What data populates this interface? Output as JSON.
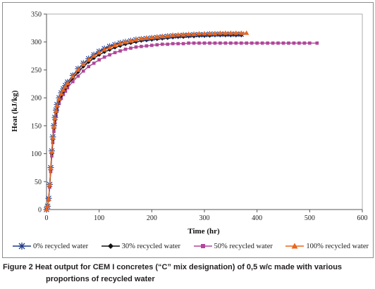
{
  "caption": {
    "label": "Figure 2",
    "text_line1": " Heat output for CEM I concretes (“C” mix designation) of 0,5 w/c made with various",
    "text_line2": "proportions of recycled water"
  },
  "chart_data": {
    "type": "line",
    "title": "",
    "xlabel": "Time (hr)",
    "ylabel": "Heat (kJ/kg)",
    "xlim": [
      0,
      600
    ],
    "ylim": [
      0,
      350
    ],
    "xticks": [
      0,
      100,
      200,
      300,
      400,
      500,
      600
    ],
    "yticks": [
      0,
      50,
      100,
      150,
      200,
      250,
      300,
      350
    ],
    "grid": false,
    "legend_position": "bottom",
    "series": [
      {
        "name": "0% recycled water",
        "color": "#1f3c8a",
        "marker": "asterisk-icon",
        "x": [
          0,
          2,
          4,
          6,
          8,
          10,
          12,
          14,
          16,
          18,
          20,
          24,
          28,
          32,
          36,
          40,
          50,
          60,
          70,
          80,
          90,
          100,
          110,
          120,
          130,
          140,
          150,
          160,
          170,
          180,
          190,
          200,
          210,
          220,
          230,
          240,
          250,
          260,
          270,
          280,
          290,
          300,
          310,
          320,
          330,
          340,
          350,
          360,
          370
        ],
        "y": [
          0,
          6,
          20,
          45,
          75,
          105,
          130,
          150,
          165,
          178,
          188,
          200,
          209,
          216,
          222,
          228,
          240,
          252,
          262,
          270,
          277,
          283,
          288,
          292,
          295,
          298,
          300,
          302,
          304,
          305,
          306,
          307,
          308,
          309,
          310,
          311,
          311,
          312,
          312,
          313,
          313,
          313,
          314,
          314,
          314,
          314,
          314,
          314,
          314
        ]
      },
      {
        "name": "30% recycled water",
        "color": "#111111",
        "marker": "diamond-icon",
        "x": [
          0,
          2,
          4,
          6,
          8,
          10,
          12,
          14,
          16,
          18,
          20,
          24,
          28,
          32,
          36,
          40,
          50,
          60,
          70,
          80,
          90,
          100,
          110,
          120,
          130,
          140,
          150,
          160,
          170,
          180,
          190,
          200,
          210,
          220,
          230,
          240,
          250,
          260,
          270,
          280,
          290,
          300,
          310,
          320,
          330,
          340,
          350,
          360,
          370
        ],
        "y": [
          0,
          5,
          18,
          42,
          72,
          100,
          125,
          145,
          160,
          173,
          183,
          195,
          204,
          211,
          217,
          223,
          235,
          246,
          256,
          264,
          271,
          277,
          282,
          286,
          290,
          293,
          296,
          298,
          300,
          302,
          303,
          304,
          305,
          306,
          307,
          308,
          309,
          309,
          310,
          310,
          311,
          311,
          311,
          312,
          312,
          312,
          312,
          312,
          312
        ]
      },
      {
        "name": "50% recycled water",
        "color": "#b0479a",
        "marker": "square-icon",
        "x": [
          0,
          2,
          4,
          6,
          8,
          10,
          12,
          14,
          16,
          18,
          20,
          24,
          28,
          32,
          36,
          40,
          50,
          60,
          70,
          80,
          90,
          100,
          110,
          120,
          130,
          140,
          150,
          160,
          170,
          180,
          190,
          200,
          210,
          220,
          230,
          240,
          250,
          260,
          270,
          280,
          290,
          300,
          310,
          320,
          330,
          340,
          350,
          360,
          370,
          380,
          390,
          400,
          410,
          420,
          430,
          440,
          450,
          460,
          470,
          480,
          490,
          500,
          514
        ],
        "y": [
          0,
          5,
          17,
          40,
          68,
          96,
          120,
          140,
          155,
          168,
          178,
          190,
          199,
          206,
          212,
          218,
          229,
          239,
          248,
          256,
          262,
          268,
          273,
          277,
          281,
          284,
          287,
          289,
          291,
          292,
          293,
          294,
          295,
          296,
          296,
          297,
          297,
          297,
          298,
          298,
          298,
          298,
          298,
          298,
          298,
          298,
          298,
          298,
          298,
          298,
          298,
          298,
          298,
          298,
          298,
          298,
          298,
          298,
          298,
          298,
          298,
          298,
          298
        ]
      },
      {
        "name": "100% recycled water",
        "color": "#e8661e",
        "marker": "triangle-icon",
        "x": [
          0,
          2,
          4,
          6,
          8,
          10,
          12,
          14,
          16,
          18,
          20,
          24,
          28,
          32,
          36,
          40,
          50,
          60,
          70,
          80,
          90,
          100,
          110,
          120,
          130,
          140,
          150,
          160,
          170,
          180,
          190,
          200,
          210,
          220,
          230,
          240,
          250,
          260,
          270,
          280,
          290,
          300,
          310,
          320,
          330,
          340,
          350,
          360,
          370,
          380
        ],
        "y": [
          0,
          6,
          19,
          44,
          74,
          103,
          128,
          148,
          163,
          176,
          186,
          198,
          207,
          214,
          220,
          226,
          238,
          250,
          260,
          268,
          275,
          281,
          286,
          290,
          294,
          297,
          300,
          302,
          304,
          306,
          307,
          308,
          309,
          310,
          311,
          312,
          313,
          313,
          314,
          314,
          315,
          315,
          315,
          315,
          316,
          316,
          316,
          316,
          316,
          316
        ]
      }
    ]
  }
}
